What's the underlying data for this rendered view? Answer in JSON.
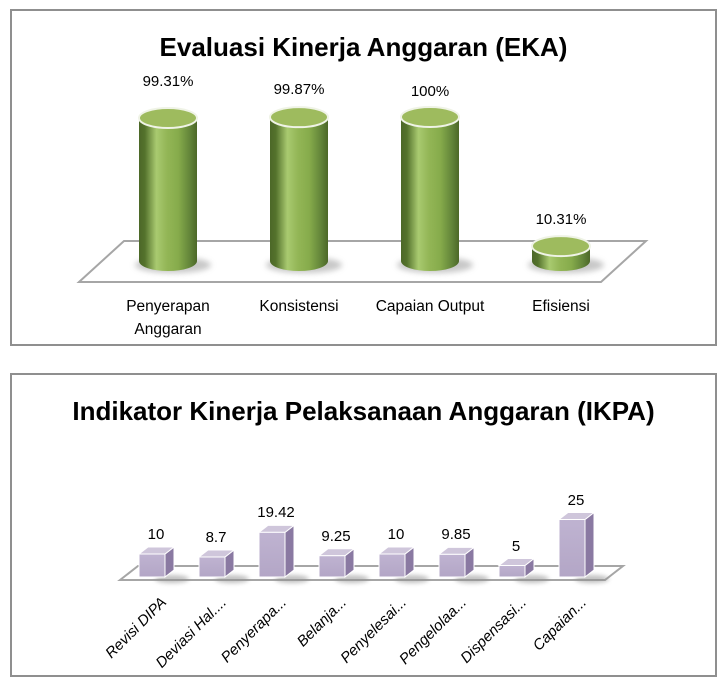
{
  "page": {
    "background": "#ffffff",
    "panel_border_color": "#8f8f8f"
  },
  "chart_data": [
    {
      "type": "bar",
      "variant": "cylinder-3d",
      "title": "Evaluasi Kinerja Anggaran (EKA)",
      "categories": [
        "Penyerapan Anggaran",
        "Konsistensi",
        "Capaian Output",
        "Efisiensi"
      ],
      "values": [
        99.31,
        99.87,
        100,
        10.31
      ],
      "value_labels": [
        "99.31%",
        "99.87%",
        "100%",
        "10.31%"
      ],
      "unit": "%",
      "ylim": [
        0,
        100
      ],
      "grid": false,
      "legend": false,
      "axis_labels_visible": false,
      "colors": {
        "bar_mid": "#93B656",
        "bar_light": "#A9CA70",
        "bar_dark": "#54722C",
        "bar_edge_dark": "#4C6828",
        "top_face": "#9EBB5E",
        "top_rim": "#EFF3E6",
        "floor_fill": "#FFFFFF",
        "floor_stroke": "#A6A6A6",
        "shadow": "#8F8F8F"
      }
    },
    {
      "type": "bar",
      "variant": "box-3d",
      "title": "Indikator Kinerja Pelaksanaan Anggaran (IKPA)",
      "categories": [
        "Revisi DIPA",
        "Deviasi Hal....",
        "Penyerapa...",
        "Belanja...",
        "Penyelesai...",
        "Pengelolaa...",
        "Dispensasi...",
        "Capaian..."
      ],
      "values": [
        10,
        8.7,
        19.42,
        9.25,
        10,
        9.85,
        5,
        25
      ],
      "value_labels": [
        "10",
        "8.7",
        "19.42",
        "9.25",
        "10",
        "9.85",
        "5",
        "25"
      ],
      "ylim": [
        0,
        25
      ],
      "grid": false,
      "legend": false,
      "category_label_rotation_deg": -45,
      "category_label_italic": true,
      "colors": {
        "bar_front": "#B3A6C6",
        "bar_front_light": "#BFB3D1",
        "bar_side": "#8A79A2",
        "bar_top": "#CFC6DB",
        "bar_edge": "#FFFFFF",
        "floor_fill": "#FFFFFF",
        "floor_stroke": "#A6A6A6",
        "shadow": "#8F8F8F"
      }
    }
  ]
}
